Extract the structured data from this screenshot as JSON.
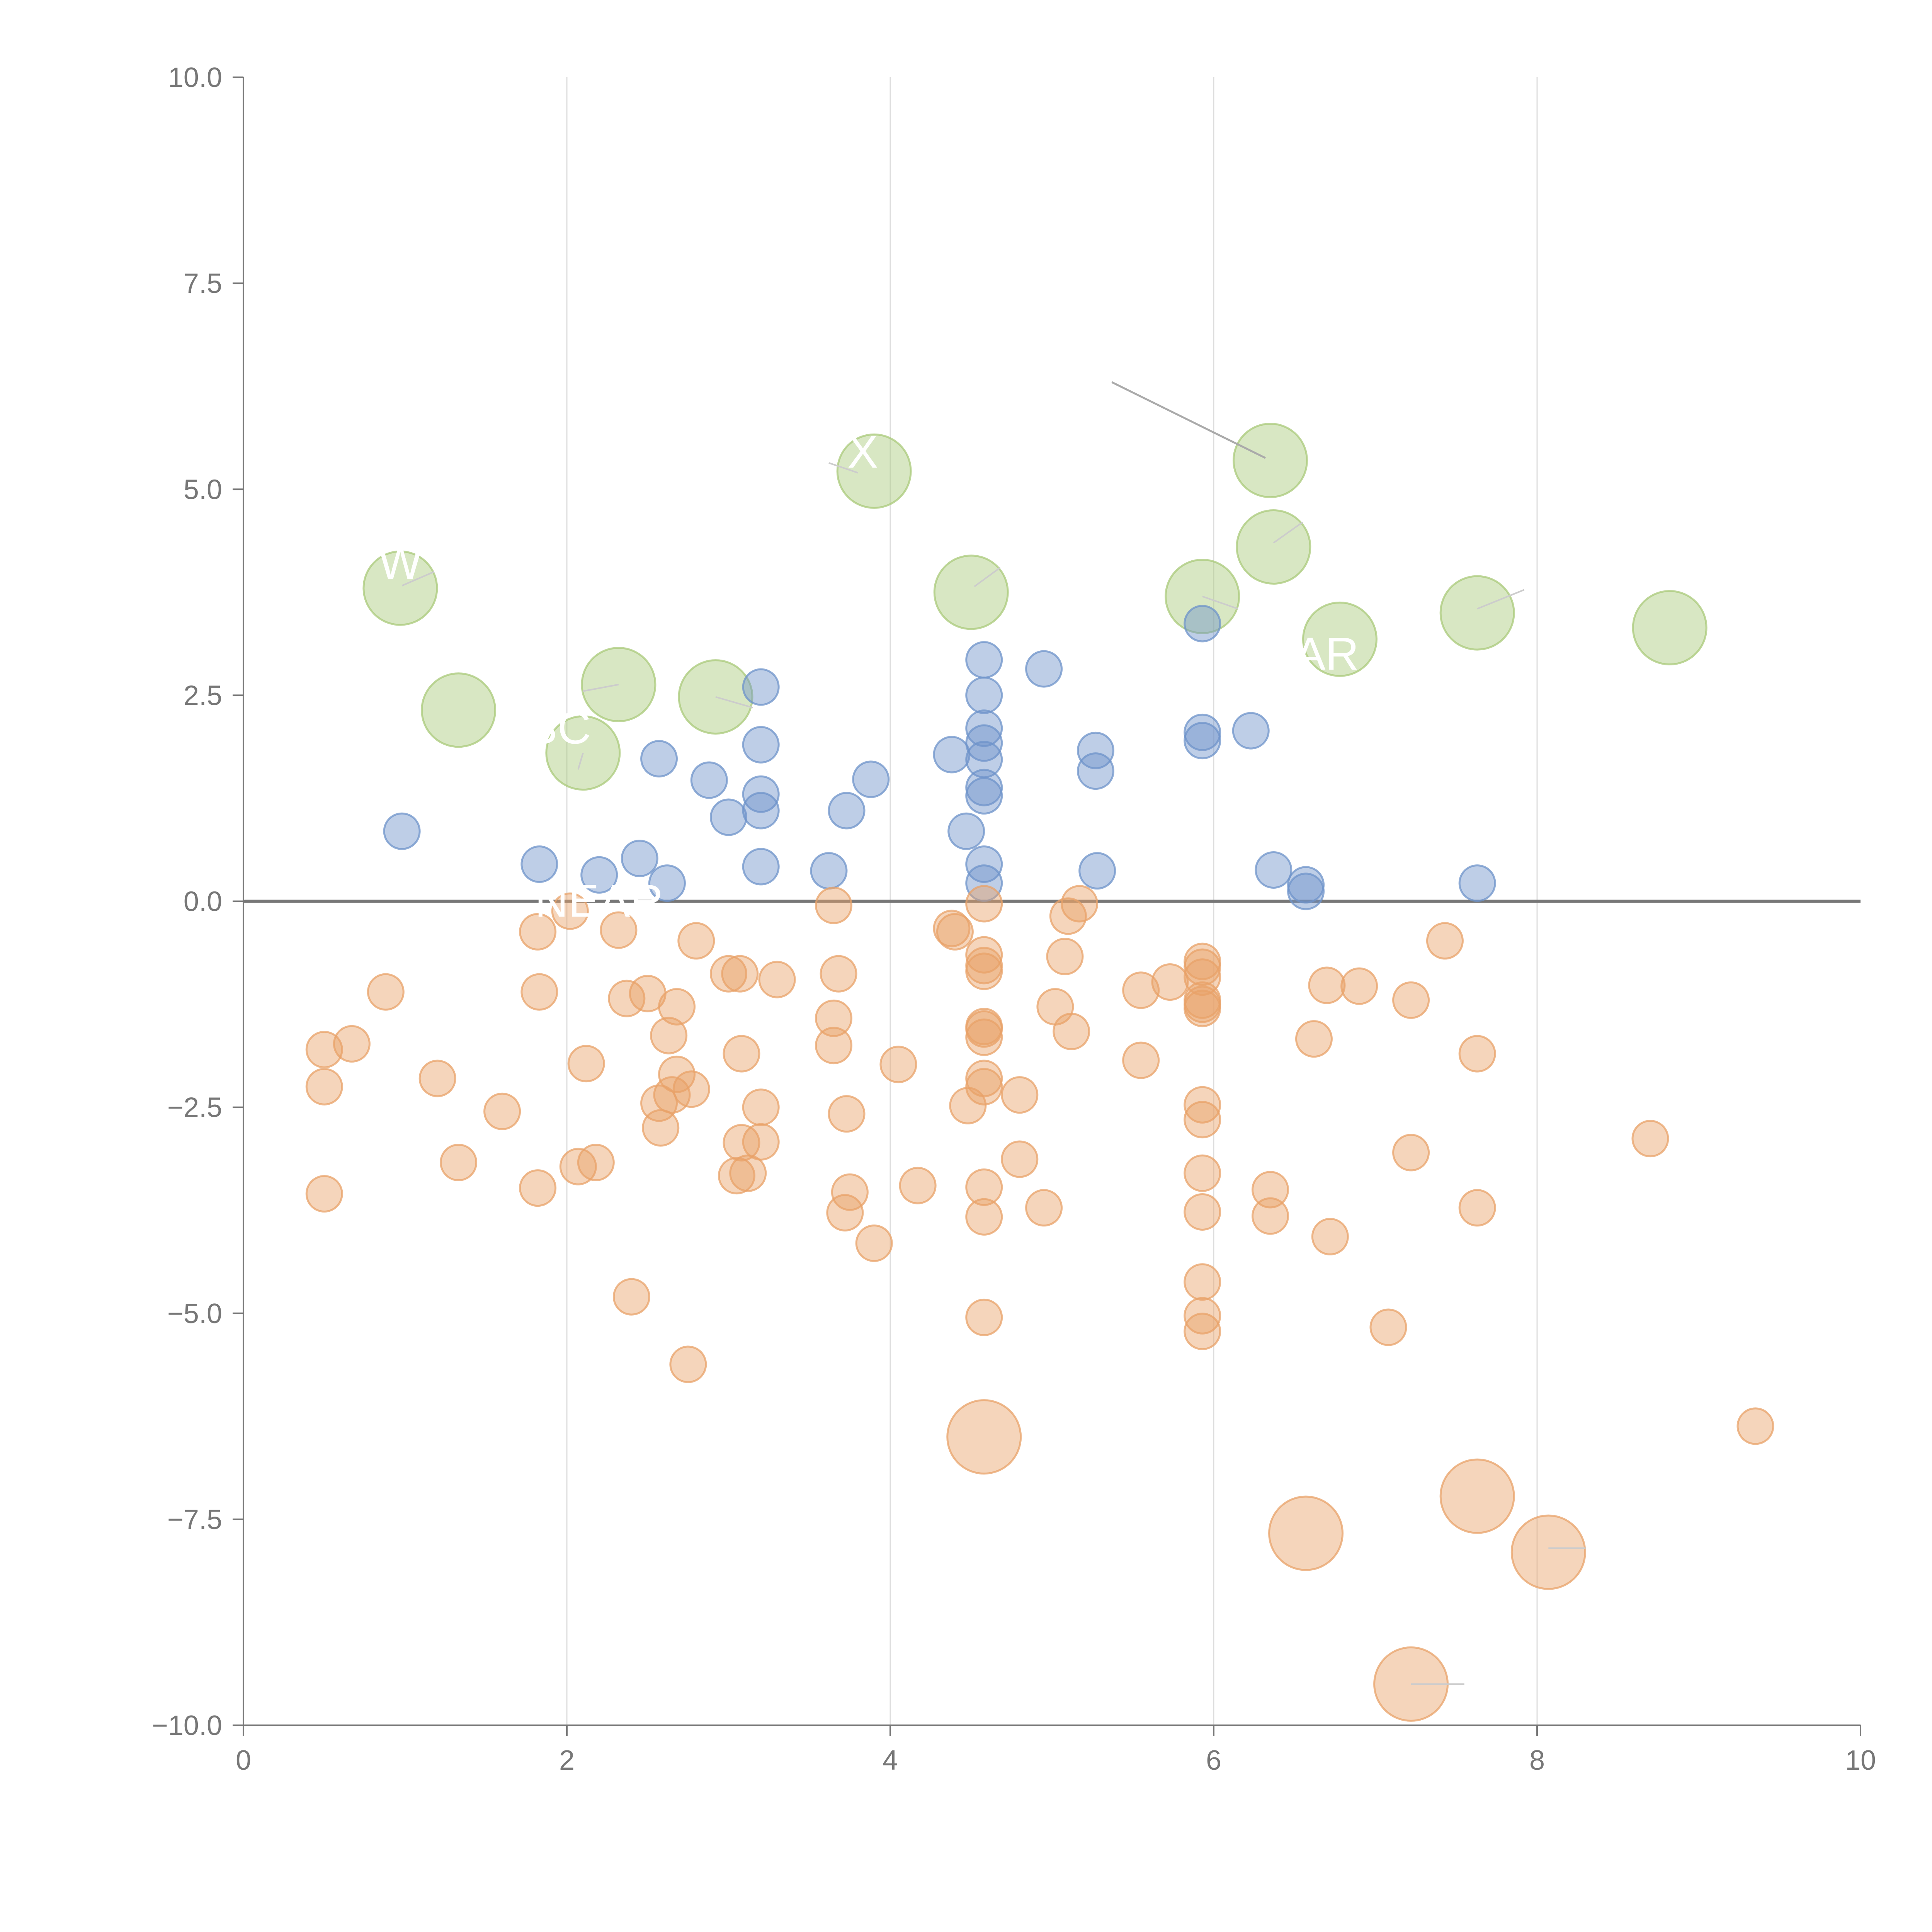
{
  "chart_data": {
    "type": "scatter",
    "title": "",
    "xlabel": "",
    "ylabel": "",
    "xlim": [
      0,
      10
    ],
    "ylim": [
      -10,
      10
    ],
    "xticks": [
      0,
      2,
      4,
      6,
      8,
      10
    ],
    "xtick_labels": [
      "0",
      "2",
      "4",
      "6",
      "8",
      "10"
    ],
    "yticks": [
      -10,
      -7.5,
      -5,
      -2.5,
      0,
      2.5,
      5,
      7.5,
      10
    ],
    "ytick_labels": [
      "−10.0",
      "−7.5",
      "−5.0",
      "−2.5",
      "0.0",
      "2.5",
      "5.0",
      "7.5",
      "10.0"
    ],
    "vertical_gridlines": [
      2,
      4,
      6,
      8
    ],
    "zero_line": 0,
    "colors": {
      "green": "#a9c97a",
      "blue": "#6e93c9",
      "orange": "#e8a168",
      "axis": "#777777",
      "grid": "#dddddd",
      "zero_line": "#777777"
    },
    "series": [
      {
        "name": "green",
        "color": "#a9c97a",
        "size": "large",
        "points": [
          [
            0.97,
            3.8
          ],
          [
            1.33,
            2.32
          ],
          [
            2.1,
            1.8
          ],
          [
            2.32,
            2.63
          ],
          [
            2.92,
            2.48
          ],
          [
            3.9,
            5.22
          ],
          [
            4.5,
            3.75
          ],
          [
            5.93,
            3.7
          ],
          [
            6.35,
            5.35
          ],
          [
            6.37,
            4.3
          ],
          [
            6.78,
            3.18
          ],
          [
            7.63,
            3.5
          ],
          [
            8.82,
            3.32
          ]
        ]
      },
      {
        "name": "blue",
        "color": "#6e93c9",
        "size": "small",
        "points": [
          [
            0.98,
            0.85
          ],
          [
            1.83,
            0.45
          ],
          [
            2.2,
            0.32
          ],
          [
            2.45,
            0.52
          ],
          [
            2.62,
            0.22
          ],
          [
            2.57,
            1.73
          ],
          [
            2.88,
            1.47
          ],
          [
            3.0,
            1.02
          ],
          [
            3.2,
            2.6
          ],
          [
            3.2,
            1.9
          ],
          [
            3.2,
            1.3
          ],
          [
            3.2,
            1.1
          ],
          [
            3.2,
            0.42
          ],
          [
            3.62,
            0.37
          ],
          [
            3.73,
            1.1
          ],
          [
            3.88,
            1.48
          ],
          [
            4.38,
            1.78
          ],
          [
            4.47,
            0.85
          ],
          [
            4.58,
            2.93
          ],
          [
            4.58,
            2.5
          ],
          [
            4.58,
            2.1
          ],
          [
            4.58,
            1.92
          ],
          [
            4.58,
            1.72
          ],
          [
            4.58,
            1.38
          ],
          [
            4.58,
            1.28
          ],
          [
            4.58,
            0.45
          ],
          [
            4.58,
            0.22
          ],
          [
            4.95,
            2.82
          ],
          [
            5.27,
            1.83
          ],
          [
            5.27,
            1.58
          ],
          [
            5.28,
            0.37
          ],
          [
            5.93,
            3.37
          ],
          [
            5.93,
            2.05
          ],
          [
            5.93,
            1.95
          ],
          [
            6.23,
            2.07
          ],
          [
            6.37,
            0.38
          ],
          [
            6.57,
            0.2
          ],
          [
            6.57,
            0.12
          ],
          [
            7.63,
            0.22
          ]
        ]
      },
      {
        "name": "orange",
        "color": "#e8a168",
        "size": "small",
        "points": [
          [
            0.5,
            -1.8
          ],
          [
            0.5,
            -2.25
          ],
          [
            0.5,
            -3.55
          ],
          [
            0.67,
            -1.73
          ],
          [
            0.88,
            -1.1
          ],
          [
            1.2,
            -2.15
          ],
          [
            1.33,
            -3.17
          ],
          [
            1.6,
            -2.55
          ],
          [
            1.82,
            -0.37
          ],
          [
            1.83,
            -1.1
          ],
          [
            1.82,
            -3.48
          ],
          [
            2.02,
            -0.12
          ],
          [
            2.07,
            -3.22
          ],
          [
            2.12,
            -1.97
          ],
          [
            2.18,
            -3.17
          ],
          [
            2.32,
            -0.35
          ],
          [
            2.37,
            -1.18
          ],
          [
            2.4,
            -4.8
          ],
          [
            2.5,
            -1.12
          ],
          [
            2.57,
            -2.45
          ],
          [
            2.58,
            -2.75
          ],
          [
            2.63,
            -1.63
          ],
          [
            2.65,
            -2.35
          ],
          [
            2.68,
            -2.1
          ],
          [
            2.68,
            -1.28
          ],
          [
            2.75,
            -5.62
          ],
          [
            2.77,
            -2.28
          ],
          [
            2.8,
            -0.48
          ],
          [
            3.0,
            -0.88
          ],
          [
            3.05,
            -3.33
          ],
          [
            3.07,
            -0.88
          ],
          [
            3.08,
            -2.93
          ],
          [
            3.08,
            -1.85
          ],
          [
            3.12,
            -3.3
          ],
          [
            3.2,
            -2.5
          ],
          [
            3.2,
            -2.92
          ],
          [
            3.3,
            -0.95
          ],
          [
            3.65,
            -0.05
          ],
          [
            3.65,
            -1.42
          ],
          [
            3.65,
            -1.75
          ],
          [
            3.68,
            -0.88
          ],
          [
            3.72,
            -3.78
          ],
          [
            3.73,
            -2.58
          ],
          [
            3.75,
            -3.53
          ],
          [
            3.9,
            -4.15
          ],
          [
            4.05,
            -1.98
          ],
          [
            4.17,
            -3.45
          ],
          [
            4.38,
            -0.33
          ],
          [
            4.4,
            -0.37
          ],
          [
            4.48,
            -2.48
          ],
          [
            4.58,
            -0.03
          ],
          [
            4.58,
            -0.65
          ],
          [
            4.58,
            -0.78
          ],
          [
            4.58,
            -0.85
          ],
          [
            4.58,
            -1.52
          ],
          [
            4.58,
            -1.55
          ],
          [
            4.58,
            -1.65
          ],
          [
            4.58,
            -2.15
          ],
          [
            4.58,
            -2.25
          ],
          [
            4.58,
            -3.47
          ],
          [
            4.58,
            -3.83
          ],
          [
            4.58,
            -5.05
          ],
          [
            4.8,
            -2.35
          ],
          [
            4.8,
            -3.13
          ],
          [
            4.95,
            -3.72
          ],
          [
            5.02,
            -1.28
          ],
          [
            5.08,
            -0.67
          ],
          [
            5.1,
            -0.18
          ],
          [
            5.12,
            -1.58
          ],
          [
            5.17,
            -0.03
          ],
          [
            5.55,
            -1.08
          ],
          [
            5.55,
            -1.93
          ],
          [
            5.73,
            -0.98
          ],
          [
            5.93,
            -0.73
          ],
          [
            5.93,
            -0.8
          ],
          [
            5.93,
            -0.92
          ],
          [
            5.93,
            -1.2
          ],
          [
            5.93,
            -1.25
          ],
          [
            5.93,
            -1.3
          ],
          [
            5.93,
            -2.47
          ],
          [
            5.93,
            -2.65
          ],
          [
            5.93,
            -3.3
          ],
          [
            5.93,
            -3.77
          ],
          [
            5.93,
            -4.62
          ],
          [
            5.93,
            -5.03
          ],
          [
            5.93,
            -5.22
          ],
          [
            6.35,
            -3.5
          ],
          [
            6.35,
            -3.82
          ],
          [
            6.62,
            -1.67
          ],
          [
            6.7,
            -1.02
          ],
          [
            6.72,
            -4.07
          ],
          [
            6.9,
            -1.03
          ],
          [
            7.08,
            -5.17
          ],
          [
            7.22,
            -1.2
          ],
          [
            7.22,
            -3.05
          ],
          [
            7.43,
            -0.48
          ],
          [
            7.63,
            -1.85
          ],
          [
            7.63,
            -3.72
          ],
          [
            8.7,
            -2.88
          ],
          [
            9.35,
            -6.37
          ]
        ]
      },
      {
        "name": "orange",
        "color": "#e8a168",
        "size": "large",
        "points": [
          [
            4.58,
            -6.5
          ],
          [
            6.57,
            -7.67
          ],
          [
            7.63,
            -7.22
          ],
          [
            8.07,
            -7.9
          ],
          [
            7.22,
            -9.5
          ]
        ]
      }
    ],
    "annotations": [
      {
        "text": "BC",
        "x": 1.95,
        "y": 2.1
      },
      {
        "text": "NEAR",
        "x": 2.2,
        "y": 0.0
      },
      {
        "text": "NEAR",
        "x": 6.5,
        "y": 3.0
      },
      {
        "text": "W",
        "x": 0.97,
        "y": 4.1
      },
      {
        "text": "X",
        "x": 3.83,
        "y": 5.45
      }
    ]
  }
}
